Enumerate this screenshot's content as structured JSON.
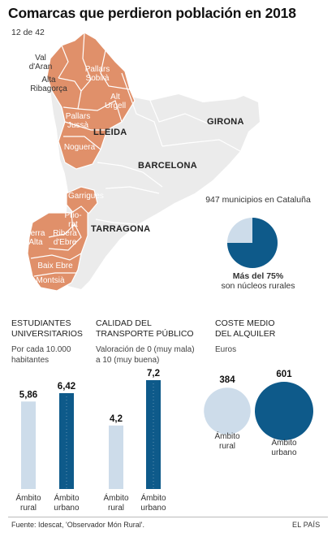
{
  "title": "Comarcas que perdieron población en 2018",
  "subtitle": "12 de 42",
  "map": {
    "colors": {
      "lost": "#e0906a",
      "other": "#ebebeb",
      "border": "#ffffff"
    },
    "comarca_labels": [
      {
        "id": "val-daran",
        "lines": [
          "Val",
          "d'Aran"
        ]
      },
      {
        "id": "alta-ribagorca",
        "lines": [
          "Alta",
          "Ribagorça"
        ]
      },
      {
        "id": "pallars-sobira",
        "lines": [
          "Pallars",
          "Sobirà"
        ]
      },
      {
        "id": "alt-urgell",
        "lines": [
          "Alt",
          "Urgell"
        ]
      },
      {
        "id": "pallars-jussa",
        "lines": [
          "Pallars",
          "Jussà"
        ]
      },
      {
        "id": "noguera",
        "lines": [
          "Noguera"
        ]
      },
      {
        "id": "garrigues",
        "lines": [
          "Garrigues"
        ]
      },
      {
        "id": "priorat",
        "lines": [
          "Prio-",
          "rat"
        ]
      },
      {
        "id": "terra-alta",
        "lines": [
          "Terra",
          "Alta"
        ]
      },
      {
        "id": "ribera-debre",
        "lines": [
          "Ribera",
          "d'Ebre"
        ]
      },
      {
        "id": "baix-ebre",
        "lines": [
          "Baix Ebre"
        ]
      },
      {
        "id": "montsia",
        "lines": [
          "Montsià"
        ]
      }
    ],
    "province_labels": [
      "LLEIDA",
      "GIRONA",
      "BARCELONA",
      "TARRAGONA"
    ]
  },
  "pie": {
    "label_top": "947 municipios en Cataluña",
    "label_bottom_strong": "Más del 75%",
    "label_bottom": "son núcleos rurales",
    "rural_pct": 75,
    "colors": {
      "rural": "#0e5a8a",
      "rest": "#cddcea"
    }
  },
  "sections": {
    "students": {
      "title_1": "ESTUDIANTES",
      "title_2": "UNIVERSITARIOS",
      "sub_1": "Por cada 10.000",
      "sub_2": "habitantes"
    },
    "transport": {
      "title_1": "CALIDAD DEL",
      "title_2": "TRANSPORTE PÚBLICO",
      "sub_1": "Valoración de 0 (muy mala)",
      "sub_2": "a 10 (muy buena)"
    },
    "rent": {
      "title_1": "COSTE MEDIO",
      "title_2": "DEL ALQUILER",
      "sub_1": "Euros"
    }
  },
  "chart_data": [
    {
      "type": "bar",
      "title": "ESTUDIANTES UNIVERSITARIOS",
      "subtitle": "Por cada 10.000 habitantes",
      "categories": [
        "Ámbito rural",
        "Ámbito urbano"
      ],
      "values": [
        5.86,
        6.42
      ],
      "labels": [
        "5,86",
        "6,42"
      ],
      "ylim": [
        0,
        6.42
      ],
      "colors": [
        "#cddcea",
        "#0e5a8a"
      ]
    },
    {
      "type": "bar",
      "title": "CALIDAD DEL TRANSPORTE PÚBLICO",
      "subtitle": "Valoración de 0 (muy mala) a 10 (muy buena)",
      "categories": [
        "Ámbito rural",
        "Ámbito urbano"
      ],
      "values": [
        4.2,
        7.2
      ],
      "labels": [
        "4,2",
        "7,2"
      ],
      "ylim": [
        0,
        7.2
      ],
      "colors": [
        "#cddcea",
        "#0e5a8a"
      ]
    },
    {
      "type": "bubble",
      "title": "COSTE MEDIO DEL ALQUILER",
      "subtitle": "Euros",
      "categories": [
        "Ámbito rural",
        "Ámbito urbano"
      ],
      "values": [
        384,
        601
      ],
      "labels": [
        "384",
        "601"
      ],
      "colors": [
        "#cddcea",
        "#0e5a8a"
      ]
    }
  ],
  "bar_cat_lines": [
    [
      "Ámbito",
      "rural"
    ],
    [
      "Ámbito",
      "urbano"
    ]
  ],
  "footer": {
    "source": "Fuente: Idescat, 'Observador Món Rural'.",
    "credit": "EL PAÍS"
  }
}
